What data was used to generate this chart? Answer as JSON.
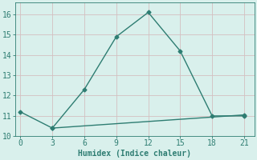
{
  "line1_x": [
    0,
    3,
    6,
    9,
    12,
    15,
    18,
    21
  ],
  "line1_y": [
    11.2,
    10.4,
    12.3,
    14.9,
    16.1,
    14.2,
    11.0,
    11.0
  ],
  "line2_x": [
    3,
    21
  ],
  "line2_y": [
    10.4,
    11.05
  ],
  "line_color": "#2e7d72",
  "bg_color": "#d9f0ec",
  "grid_color": "#d4bfc0",
  "xlabel": "Humidex (Indice chaleur)",
  "xlim": [
    -0.5,
    22
  ],
  "ylim": [
    10,
    16.6
  ],
  "xticks": [
    0,
    3,
    6,
    9,
    12,
    15,
    18,
    21
  ],
  "yticks": [
    10,
    11,
    12,
    13,
    14,
    15,
    16
  ],
  "marker": "D",
  "markersize": 2.5,
  "linewidth": 1.0
}
